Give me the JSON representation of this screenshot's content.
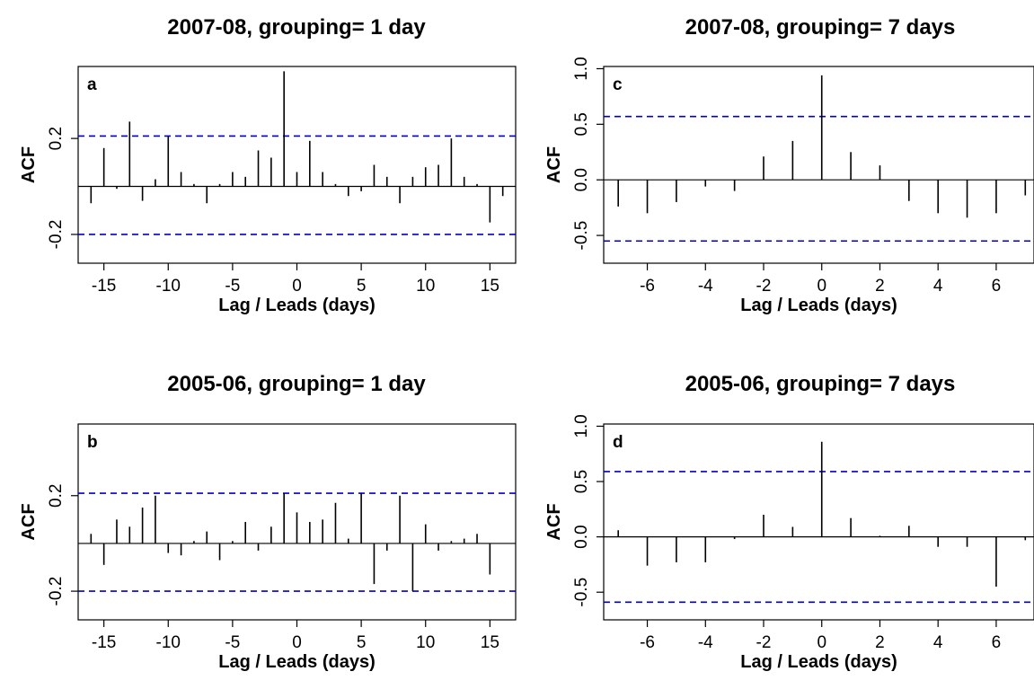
{
  "chart_data": [
    {
      "type": "bar",
      "subtype": "acf-lollipop",
      "title": "2007-08, grouping= 1 day",
      "panel_label": "a",
      "xlabel": "Lag / Leads (days)",
      "ylabel": "ACF",
      "xlim": [
        -17,
        17
      ],
      "ylim": [
        -0.32,
        0.5
      ],
      "xticks": [
        -15,
        -10,
        -5,
        0,
        5,
        10,
        15
      ],
      "xtick_labels": [
        "-15",
        "-10",
        "-5",
        "0",
        "5",
        "10",
        "15"
      ],
      "yticks": [
        -0.2,
        0.2
      ],
      "ytick_labels": [
        "-0.2",
        "0.2"
      ],
      "confidence_bounds": [
        0.21,
        -0.2
      ],
      "colors": {
        "bars": "#000000",
        "bounds": "#0000cc"
      },
      "x": [
        -16,
        -15,
        -14,
        -13,
        -12,
        -11,
        -10,
        -9,
        -8,
        -7,
        -6,
        -5,
        -4,
        -3,
        -2,
        -1,
        0,
        1,
        2,
        3,
        4,
        5,
        6,
        7,
        8,
        9,
        10,
        11,
        12,
        13,
        14,
        15,
        16
      ],
      "values": [
        -0.07,
        0.16,
        -0.01,
        0.27,
        -0.06,
        0.03,
        0.21,
        0.06,
        0.01,
        -0.07,
        0.01,
        0.06,
        0.04,
        0.15,
        0.12,
        0.48,
        0.06,
        0.19,
        0.06,
        0.01,
        -0.04,
        -0.02,
        0.09,
        0.04,
        -0.07,
        0.04,
        0.08,
        0.09,
        0.2,
        0.04,
        0.01,
        -0.15,
        -0.04
      ]
    },
    {
      "type": "bar",
      "subtype": "acf-lollipop",
      "title": "2007-08, grouping= 7 days",
      "panel_label": "c",
      "xlabel": "Lag / Leads (days)",
      "ylabel": "ACF",
      "xlim": [
        -7.5,
        7.3
      ],
      "ylim": [
        -0.75,
        1.02
      ],
      "xticks": [
        -6,
        -4,
        -2,
        0,
        2,
        4,
        6
      ],
      "xtick_labels": [
        "-6",
        "-4",
        "-2",
        "0",
        "2",
        "4",
        "6"
      ],
      "yticks": [
        -0.5,
        0.0,
        0.5,
        1.0
      ],
      "ytick_labels": [
        "-0.5",
        "0.0",
        "0.5",
        "1.0"
      ],
      "confidence_bounds": [
        0.57,
        -0.55
      ],
      "colors": {
        "bars": "#000000",
        "bounds": "#0000cc"
      },
      "x": [
        -7,
        -6,
        -5,
        -4,
        -3,
        -2,
        -1,
        0,
        1,
        2,
        3,
        4,
        5,
        6,
        7
      ],
      "values": [
        -0.24,
        -0.3,
        -0.2,
        -0.06,
        -0.1,
        0.21,
        0.35,
        0.94,
        0.25,
        0.13,
        -0.19,
        -0.3,
        -0.34,
        -0.3,
        -0.14
      ]
    },
    {
      "type": "bar",
      "subtype": "acf-lollipop",
      "title": "2005-06, grouping= 1 day",
      "panel_label": "b",
      "xlabel": "Lag / Leads (days)",
      "ylabel": "ACF",
      "xlim": [
        -17,
        17
      ],
      "ylim": [
        -0.32,
        0.5
      ],
      "xticks": [
        -15,
        -10,
        -5,
        0,
        5,
        10,
        15
      ],
      "xtick_labels": [
        "-15",
        "-10",
        "-5",
        "0",
        "5",
        "10",
        "15"
      ],
      "yticks": [
        -0.2,
        0.2
      ],
      "ytick_labels": [
        "-0.2",
        "0.2"
      ],
      "confidence_bounds": [
        0.21,
        -0.2
      ],
      "colors": {
        "bars": "#000000",
        "bounds": "#0000cc"
      },
      "x": [
        -16,
        -15,
        -14,
        -13,
        -12,
        -11,
        -10,
        -9,
        -8,
        -7,
        -6,
        -5,
        -4,
        -3,
        -2,
        -1,
        0,
        1,
        2,
        3,
        4,
        5,
        6,
        7,
        8,
        9,
        10,
        11,
        12,
        13,
        14,
        15,
        16
      ],
      "values": [
        0.04,
        -0.09,
        0.1,
        0.07,
        0.15,
        0.2,
        -0.04,
        -0.05,
        0.01,
        0.05,
        -0.07,
        0.01,
        0.09,
        -0.03,
        0.07,
        0.21,
        0.13,
        0.09,
        0.1,
        0.17,
        0.02,
        0.21,
        -0.17,
        -0.03,
        0.2,
        -0.2,
        0.08,
        -0.03,
        0.01,
        0.02,
        0.04,
        -0.13,
        0.0
      ]
    },
    {
      "type": "bar",
      "subtype": "acf-lollipop",
      "title": "2005-06, grouping= 7 days",
      "panel_label": "d",
      "xlabel": "Lag / Leads (days)",
      "ylabel": "ACF",
      "xlim": [
        -7.5,
        7.3
      ],
      "ylim": [
        -0.75,
        1.02
      ],
      "xticks": [
        -6,
        -4,
        -2,
        0,
        2,
        4,
        6
      ],
      "xtick_labels": [
        "-6",
        "-4",
        "-2",
        "0",
        "2",
        "4",
        "6"
      ],
      "yticks": [
        -0.5,
        0.0,
        0.5,
        1.0
      ],
      "ytick_labels": [
        "-0.5",
        "0.0",
        "0.5",
        "1.0"
      ],
      "confidence_bounds": [
        0.59,
        -0.59
      ],
      "colors": {
        "bars": "#000000",
        "bounds": "#0000cc"
      },
      "x": [
        -7,
        -6,
        -5,
        -4,
        -3,
        -2,
        -1,
        0,
        1,
        2,
        3,
        4,
        5,
        6,
        7
      ],
      "values": [
        0.06,
        -0.26,
        -0.23,
        -0.23,
        -0.02,
        0.2,
        0.09,
        0.86,
        0.17,
        0.01,
        0.1,
        -0.09,
        -0.09,
        -0.45,
        -0.03
      ]
    }
  ]
}
